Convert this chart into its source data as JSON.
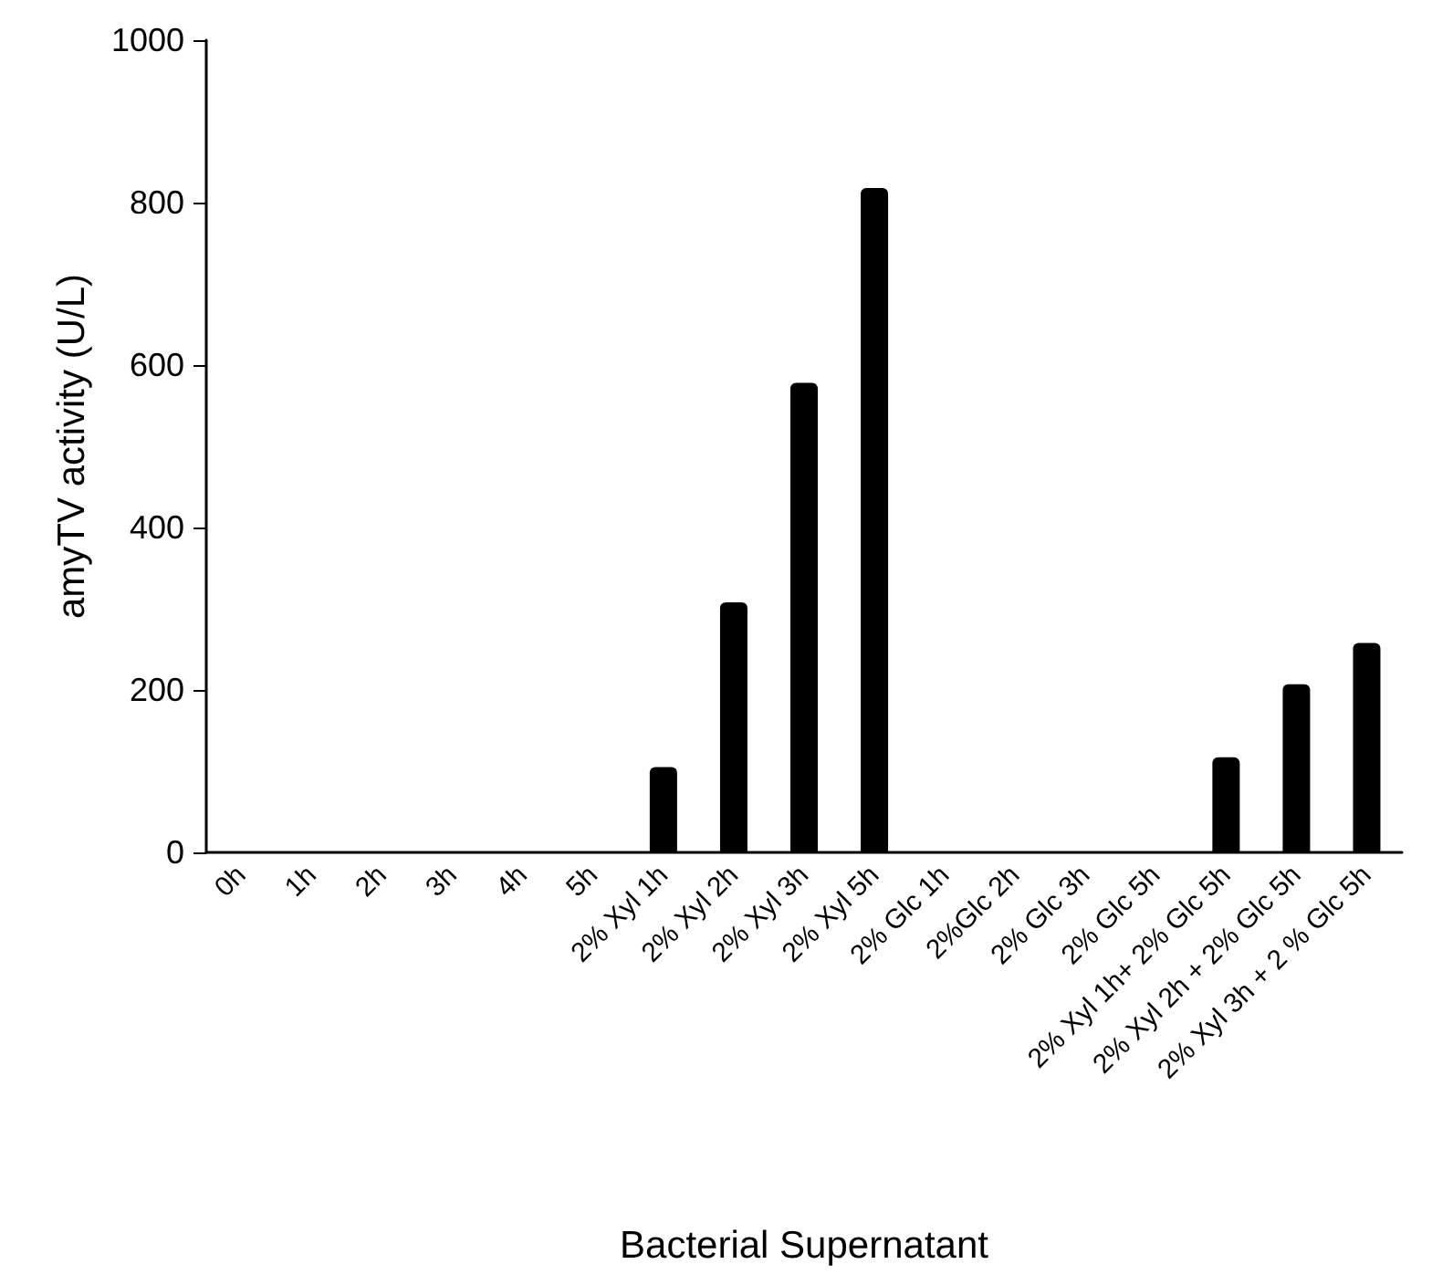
{
  "chart_data": {
    "type": "bar",
    "xlabel": "Bacterial Supernatant",
    "ylabel": "amyTV activity (U/L)",
    "categories": [
      "0h",
      "1h",
      "2h",
      "3h",
      "4h",
      "5h",
      "2% Xyl 1h",
      "2% Xyl 2h",
      "2% Xyl 3h",
      "2% Xyl 5h",
      "2% Glc 1h",
      "2%Glc 2h",
      "2% Glc 3h",
      "2% Glc 5h",
      "2% Xyl 1h+ 2% Glc 5h",
      "2% Xyl 2h + 2% Glc 5h",
      "2% Xyl 3h + 2 % Glc 5h"
    ],
    "values": [
      0,
      0,
      0,
      0,
      0,
      0,
      105,
      308,
      578,
      818,
      0,
      0,
      0,
      0,
      117,
      207,
      258
    ],
    "color": "#000000",
    "ylim": [
      0,
      1000
    ],
    "yticks": [
      0,
      200,
      400,
      600,
      800,
      1000
    ],
    "grid": false
  }
}
